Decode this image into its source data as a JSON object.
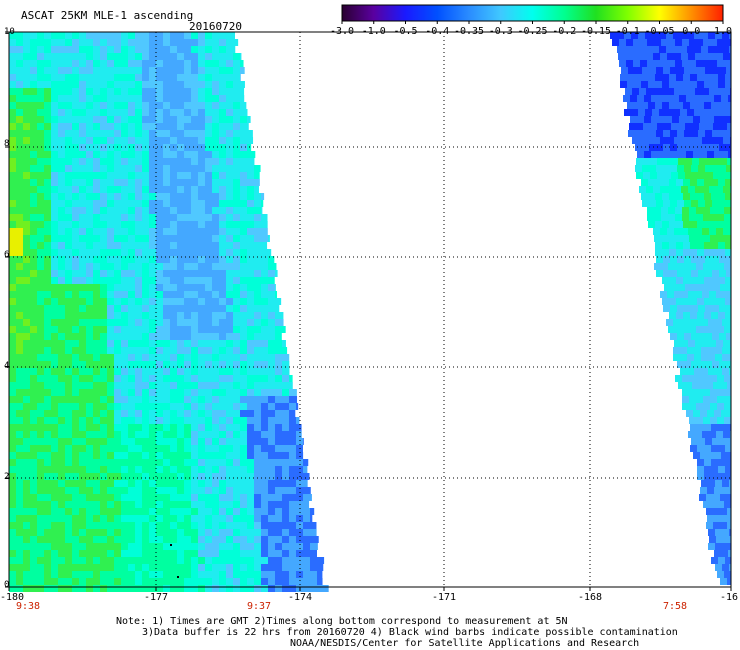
{
  "header": {
    "title": "ASCAT 25KM MLE-1 ascending",
    "date": "20160720"
  },
  "colorbar": {
    "labels": [
      "-3.0",
      "-1.0",
      "-0.5",
      "-0.4",
      "-0.35",
      "-0.3",
      "-0.25",
      "-0.2",
      "-0.15",
      "-0.1",
      "-0.05",
      "0.0",
      "1.0"
    ],
    "colors": [
      "#2a0030",
      "#5a00a0",
      "#1a1aff",
      "#0050ff",
      "#2a8cff",
      "#40c8ff",
      "#00ffee",
      "#00ff90",
      "#20e020",
      "#80ff00",
      "#ffff00",
      "#ff9000",
      "#ff2000"
    ]
  },
  "axes": {
    "y_ticks": [
      "10",
      "8",
      "6",
      "4",
      "2",
      "0"
    ],
    "x_ticks": [
      "-180",
      "-177",
      "-174",
      "-171",
      "-168",
      "-16"
    ]
  },
  "swath_times": [
    "9:38",
    "9:37",
    "7:58"
  ],
  "notes": {
    "line1": "Note: 1) Times are GMT 2)Times along bottom correspond to measurement at 5N",
    "line2": "3)Data buffer is 22 hrs from 20160720 4) Black wind barbs indicate possible contamination",
    "line3": "NOAA/NESDIS/Center for Satellite Applications and Research"
  }
}
